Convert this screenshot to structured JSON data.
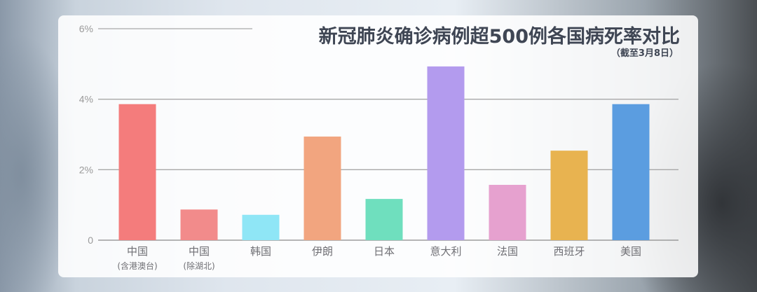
{
  "chart_data": {
    "type": "bar",
    "title": "新冠肺炎确诊病例超500例各国病死率对比",
    "subtitle": "（截至3月8日）",
    "categories": [
      {
        "label": "中国",
        "sublabel": "(含港澳台)"
      },
      {
        "label": "中国",
        "sublabel": "(除湖北)"
      },
      {
        "label": "韩国",
        "sublabel": ""
      },
      {
        "label": "伊朗",
        "sublabel": ""
      },
      {
        "label": "日本",
        "sublabel": ""
      },
      {
        "label": "意大利",
        "sublabel": ""
      },
      {
        "label": "法国",
        "sublabel": ""
      },
      {
        "label": "西班牙",
        "sublabel": ""
      },
      {
        "label": "美国",
        "sublabel": ""
      }
    ],
    "values": [
      3.86,
      0.87,
      0.72,
      2.94,
      1.17,
      4.93,
      1.57,
      2.54,
      3.86
    ],
    "colors": [
      "#f47c7c",
      "#f28b8b",
      "#8fe6f6",
      "#f2a57f",
      "#6fdfbe",
      "#b39bee",
      "#e6a1cf",
      "#e8b350",
      "#5b9de0"
    ],
    "ylim": [
      0,
      6
    ],
    "yticks": [
      {
        "value": 0,
        "label": "0"
      },
      {
        "value": 2,
        "label": "2%"
      },
      {
        "value": 4,
        "label": "4%"
      },
      {
        "value": 6,
        "label": "6%"
      }
    ],
    "grid": true,
    "xlabel": "",
    "ylabel": ""
  }
}
